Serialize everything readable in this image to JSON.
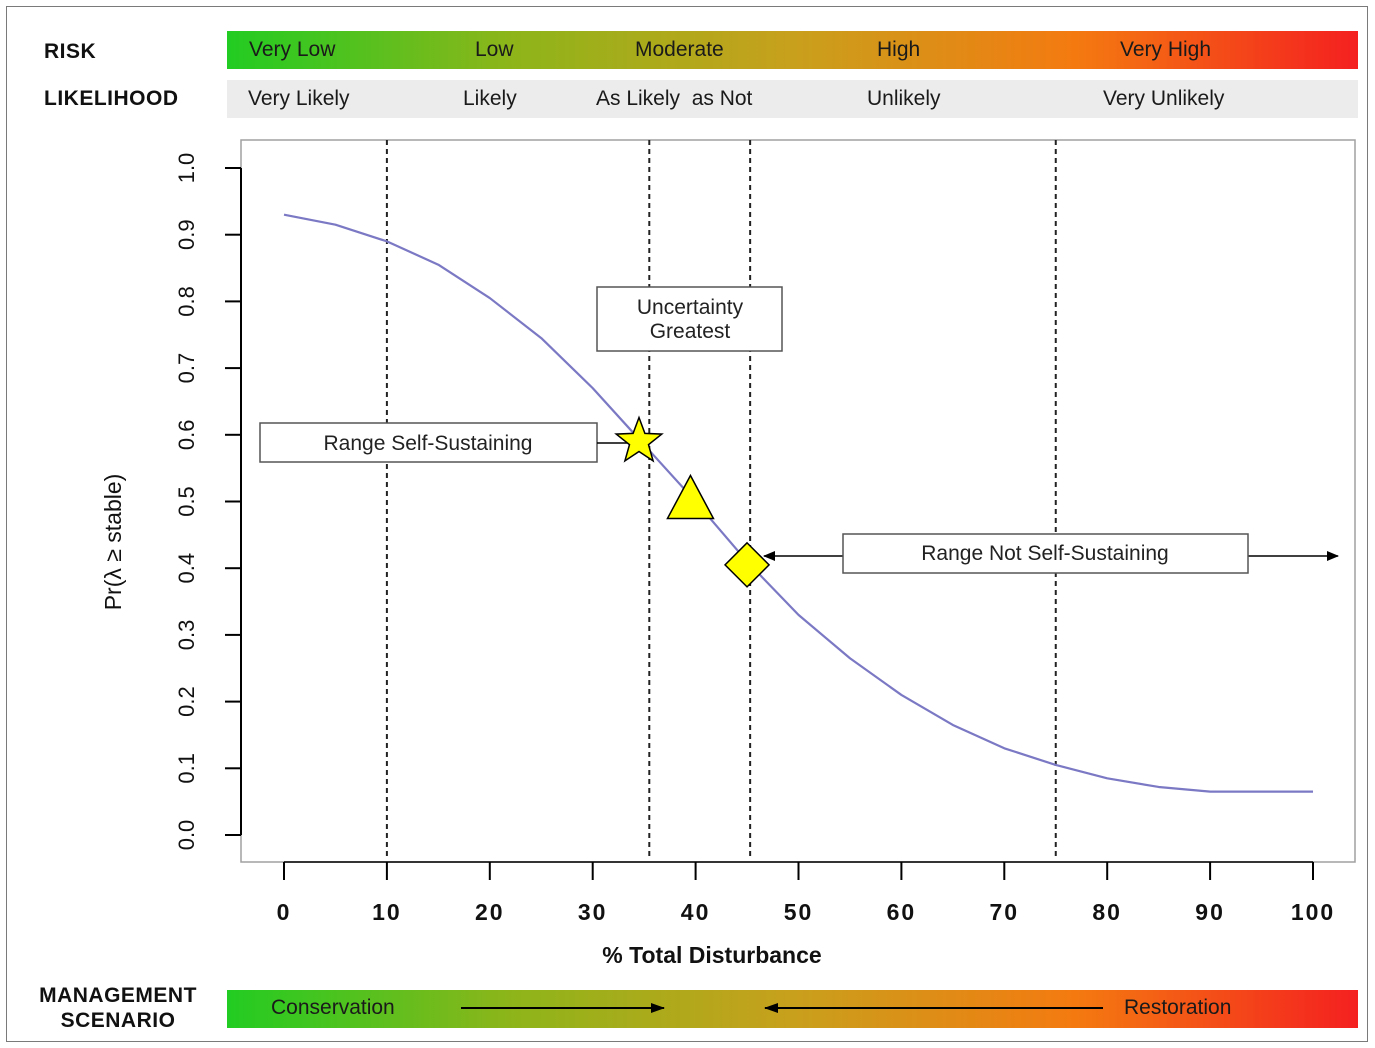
{
  "risk": {
    "label": "RISK",
    "colors": [
      "#22cc22",
      "#8db51a",
      "#c8a01c",
      "#f47a10",
      "#f42020"
    ],
    "items": [
      "Very Low",
      "Low",
      "Moderate",
      "High",
      "Very High"
    ]
  },
  "likelihood": {
    "label": "LIKELIHOOD",
    "items": [
      "Very Likely",
      "Likely",
      "As Likely  as Not",
      "Unlikely",
      "Very Unlikely"
    ]
  },
  "management": {
    "label_line1": "MANAGEMENT",
    "label_line2": "SCENARIO",
    "left": "Conservation",
    "right": "Restoration"
  },
  "chart_data": {
    "type": "line",
    "xlabel": "% Total Disturbance",
    "ylabel": "Pr(λ ≥ stable)",
    "xlim": [
      0,
      100
    ],
    "ylim": [
      0,
      1
    ],
    "x_ticks": [
      0,
      10,
      20,
      30,
      40,
      50,
      60,
      70,
      80,
      90,
      100
    ],
    "y_ticks": [
      "0.0",
      "0.1",
      "0.2",
      "0.3",
      "0.4",
      "0.5",
      "0.6",
      "0.7",
      "0.8",
      "0.9",
      "1.0"
    ],
    "series": [
      {
        "color": "#7b78c4",
        "x": [
          0,
          5,
          10,
          15,
          20,
          25,
          30,
          35,
          40,
          45,
          50,
          55,
          60,
          65,
          70,
          75,
          80,
          85,
          90,
          95,
          100
        ],
        "y": [
          0.93,
          0.915,
          0.89,
          0.855,
          0.805,
          0.745,
          0.67,
          0.585,
          0.5,
          0.41,
          0.33,
          0.265,
          0.21,
          0.165,
          0.13,
          0.105,
          0.085,
          0.072,
          0.065,
          0.065,
          0.065
        ]
      }
    ],
    "vlines": [
      10,
      35.5,
      45.3,
      75
    ],
    "markers": [
      {
        "shape": "star",
        "x": 34.5,
        "y": 0.59,
        "color": "#ffff00"
      },
      {
        "shape": "triangle",
        "x": 39.5,
        "y": 0.5,
        "color": "#ffff00"
      },
      {
        "shape": "diamond",
        "x": 45,
        "y": 0.405,
        "color": "#ffff00"
      }
    ],
    "annotations": {
      "uncertainty_line1": "Uncertainty",
      "uncertainty_line2": "Greatest",
      "self_sustaining": "Range Self-Sustaining",
      "not_self_sustaining": "Range Not Self-Sustaining"
    }
  }
}
